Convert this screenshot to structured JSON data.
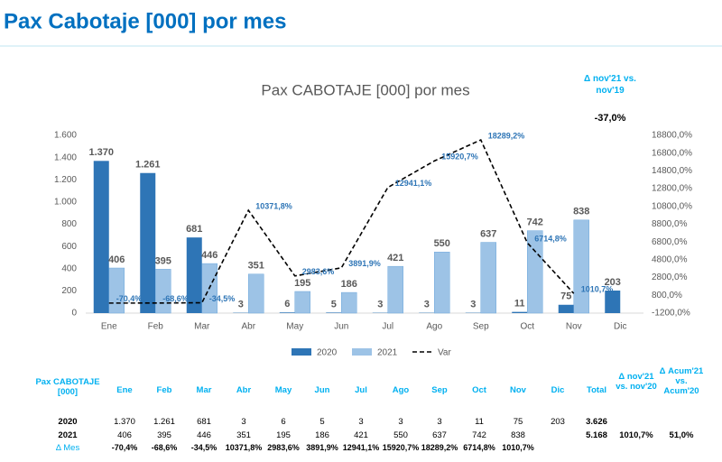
{
  "header": {
    "title": "Pax Cabotaje [000] por mes"
  },
  "chart_data": {
    "type": "bar",
    "title": "Pax CABOTAJE [000] por mes",
    "categories": [
      "Ene",
      "Feb",
      "Mar",
      "Abr",
      "May",
      "Jun",
      "Jul",
      "Ago",
      "Sep",
      "Oct",
      "Nov",
      "Dic"
    ],
    "series": [
      {
        "name": "2020",
        "type": "bar",
        "color": "#2e75b6",
        "values": [
          1370,
          1261,
          681,
          3,
          6,
          5,
          3,
          3,
          3,
          11,
          75,
          203
        ],
        "value_labels": [
          "1.370",
          "1.261",
          "681",
          "3",
          "6",
          "5",
          "3",
          "3",
          "3",
          "11",
          "75",
          "203"
        ]
      },
      {
        "name": "2021",
        "type": "bar",
        "color": "#9dc3e6",
        "values": [
          406,
          395,
          446,
          351,
          195,
          186,
          421,
          550,
          637,
          742,
          838,
          null
        ]
      },
      {
        "name": "Var",
        "type": "line",
        "axis": "y2",
        "color": "#000000",
        "dashed": true,
        "values": [
          -70.4,
          -68.6,
          -34.5,
          10371.8,
          2983.6,
          3891.9,
          12941.1,
          15920.7,
          18289.2,
          6714.8,
          1010.7,
          null
        ],
        "value_labels": [
          "-70,4%",
          "-68,6%",
          "-34,5%",
          "10371,8%",
          "2983,6%",
          "3891,9%",
          "12941,1%",
          "15920,7%",
          "18289,2%",
          "6714,8%",
          "1010,7%",
          null
        ]
      }
    ],
    "ylim": [
      0,
      1600
    ],
    "yticks": [
      0,
      200,
      400,
      600,
      800,
      {
        "value": 1000,
        "label": "1.000"
      },
      {
        "value": 1200,
        "label": "1.200"
      },
      {
        "value": 1400,
        "label": "1.400"
      },
      {
        "value": 1600,
        "label": "1.600"
      }
    ],
    "y2lim": [
      -1200,
      18800
    ],
    "y2ticks": [
      {
        "value": -1200,
        "label": "-1200,0%"
      },
      {
        "value": 800,
        "label": "800,0%"
      },
      {
        "value": 2800,
        "label": "2800,0%"
      },
      {
        "value": 4800,
        "label": "4800,0%"
      },
      {
        "value": 6800,
        "label": "6800,0%"
      },
      {
        "value": 8800,
        "label": "8800,0%"
      },
      {
        "value": 10800,
        "label": "10800,0%"
      },
      {
        "value": 12800,
        "label": "12800,0%"
      },
      {
        "value": 14800,
        "label": "14800,0%"
      },
      {
        "value": 16800,
        "label": "16800,0%"
      },
      {
        "value": 18800,
        "label": "18800,0%"
      }
    ],
    "grid": false,
    "legend": "bottom",
    "annotations": [
      "Δ nov'21 vs. nov'19",
      "-37,0%"
    ]
  },
  "table": {
    "header": [
      "Pax CABOTAJE [000]",
      "Ene",
      "Feb",
      "Mar",
      "Abr",
      "May",
      "Jun",
      "Jul",
      "Ago",
      "Sep",
      "Oct",
      "Nov",
      "Dic",
      "Total",
      "Δ nov'21 vs. nov'20",
      "Δ Acum'21 vs. Acum'20"
    ],
    "rows": [
      {
        "label": "2020",
        "cells": [
          "1.370",
          "1.261",
          "681",
          "3",
          "6",
          "5",
          "3",
          "3",
          "3",
          "11",
          "75",
          "203"
        ],
        "total": "3.626"
      },
      {
        "label": "2021",
        "cells": [
          "406",
          "395",
          "446",
          "351",
          "195",
          "186",
          "421",
          "550",
          "637",
          "742",
          "838",
          null
        ],
        "total": "5.168",
        "delta_nov": "1010,7%",
        "delta_acum": "51,0%"
      },
      {
        "label": "Δ Mes",
        "cells": [
          "-70,4%",
          "-68,6%",
          "-34,5%",
          "10371,8%",
          "2983,6%",
          "3891,9%",
          "12941,1%",
          "15920,7%",
          "18289,2%",
          "6714,8%",
          "1010,7%",
          null
        ]
      }
    ]
  }
}
